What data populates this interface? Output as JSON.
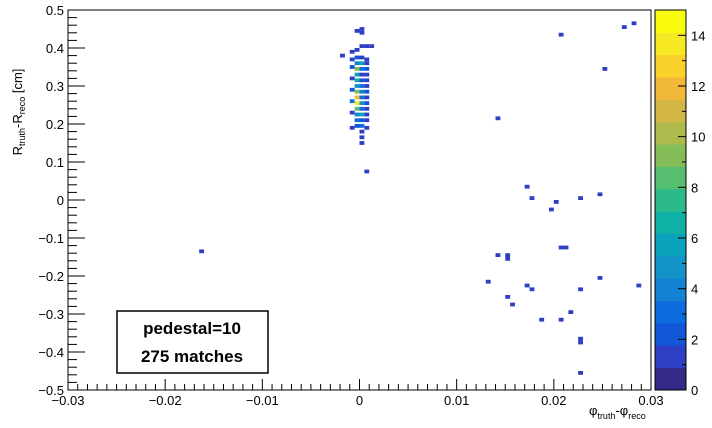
{
  "chart_data": {
    "type": "heatmap",
    "title": "",
    "xlabel": {
      "main": "φ",
      "sub1": "truth",
      "mid": "-φ",
      "sub2": "reco"
    },
    "ylabel": {
      "r1": "R",
      "sub1": "truth",
      "mid": "-R",
      "sub2": "reco",
      "unit": " [cm]"
    },
    "xlim": [
      -0.03,
      0.03
    ],
    "ylim": [
      -0.5,
      0.5
    ],
    "zlim": [
      0,
      15
    ],
    "x_ticks": [
      {
        "v": -0.03,
        "label": "−0.03"
      },
      {
        "v": -0.02,
        "label": "−0.02"
      },
      {
        "v": -0.01,
        "label": "−0.01"
      },
      {
        "v": 0,
        "label": "0"
      },
      {
        "v": 0.01,
        "label": "0.01"
      },
      {
        "v": 0.02,
        "label": "0.02"
      },
      {
        "v": 0.03,
        "label": "0.03"
      }
    ],
    "y_ticks": [
      {
        "v": -0.5,
        "label": "−0.5"
      },
      {
        "v": -0.4,
        "label": "−0.4"
      },
      {
        "v": -0.3,
        "label": "−0.3"
      },
      {
        "v": -0.2,
        "label": "−0.2"
      },
      {
        "v": -0.1,
        "label": "−0.1"
      },
      {
        "v": 0,
        "label": "0"
      },
      {
        "v": 0.1,
        "label": "0.1"
      },
      {
        "v": 0.2,
        "label": "0.2"
      },
      {
        "v": 0.3,
        "label": "0.3"
      },
      {
        "v": 0.4,
        "label": "0.4"
      },
      {
        "v": 0.5,
        "label": "0.5"
      }
    ],
    "z_ticks": [
      {
        "v": 0,
        "label": "0"
      },
      {
        "v": 2,
        "label": "2"
      },
      {
        "v": 4,
        "label": "4"
      },
      {
        "v": 6,
        "label": "6"
      },
      {
        "v": 8,
        "label": "8"
      },
      {
        "v": 10,
        "label": "10"
      },
      {
        "v": 12,
        "label": "12"
      },
      {
        "v": 14,
        "label": "14"
      }
    ],
    "colorbar_palette": [
      "#352a87",
      "#2f3fc4",
      "#1156d6",
      "#0d6ddf",
      "#1482d4",
      "#1493c8",
      "#0aa3bd",
      "#0fb0a6",
      "#2cba8b",
      "#56bf6f",
      "#84bd58",
      "#aebb4c",
      "#d2b744",
      "#f1b83a",
      "#fbd12c",
      "#f6e822",
      "#f9fb0e"
    ],
    "bins": [
      {
        "x": 0.00025,
        "y": 0.45,
        "z": 1
      },
      {
        "x": -0.00025,
        "y": 0.445,
        "z": 1
      },
      {
        "x": 0.00025,
        "y": 0.44,
        "z": 1
      },
      {
        "x": 0.00025,
        "y": 0.405,
        "z": 1
      },
      {
        "x": 0.00075,
        "y": 0.405,
        "z": 1
      },
      {
        "x": 0.00125,
        "y": 0.405,
        "z": 1
      },
      {
        "x": -0.00025,
        "y": 0.395,
        "z": 1
      },
      {
        "x": -0.00075,
        "y": 0.39,
        "z": 1
      },
      {
        "x": -0.00175,
        "y": 0.38,
        "z": 1
      },
      {
        "x": -0.00075,
        "y": 0.37,
        "z": 1
      },
      {
        "x": -0.00025,
        "y": 0.375,
        "z": 2
      },
      {
        "x": 0.00025,
        "y": 0.375,
        "z": 1
      },
      {
        "x": 0.00075,
        "y": 0.37,
        "z": 1
      },
      {
        "x": -0.00025,
        "y": 0.36,
        "z": 4
      },
      {
        "x": 0.00025,
        "y": 0.36,
        "z": 6
      },
      {
        "x": 0.00075,
        "y": 0.36,
        "z": 1
      },
      {
        "x": -0.00075,
        "y": 0.35,
        "z": 2
      },
      {
        "x": -0.00025,
        "y": 0.345,
        "z": 9
      },
      {
        "x": 0.00025,
        "y": 0.345,
        "z": 3
      },
      {
        "x": 0.00075,
        "y": 0.345,
        "z": 2
      },
      {
        "x": -0.00025,
        "y": 0.33,
        "z": 6
      },
      {
        "x": 0.00025,
        "y": 0.33,
        "z": 1
      },
      {
        "x": 0.00075,
        "y": 0.33,
        "z": 1
      },
      {
        "x": -0.00075,
        "y": 0.32,
        "z": 1
      },
      {
        "x": -0.00025,
        "y": 0.315,
        "z": 7
      },
      {
        "x": 0.00025,
        "y": 0.315,
        "z": 2
      },
      {
        "x": 0.00075,
        "y": 0.315,
        "z": 1
      },
      {
        "x": -0.00025,
        "y": 0.3,
        "z": 5
      },
      {
        "x": 0.00025,
        "y": 0.3,
        "z": 3
      },
      {
        "x": 0.00075,
        "y": 0.3,
        "z": 1
      },
      {
        "x": -0.00075,
        "y": 0.29,
        "z": 2
      },
      {
        "x": -0.00025,
        "y": 0.285,
        "z": 9
      },
      {
        "x": 0.00025,
        "y": 0.285,
        "z": 4
      },
      {
        "x": 0.00075,
        "y": 0.285,
        "z": 2
      },
      {
        "x": -0.00025,
        "y": 0.27,
        "z": 12
      },
      {
        "x": 0.00025,
        "y": 0.27,
        "z": 3
      },
      {
        "x": 0.00075,
        "y": 0.27,
        "z": 1
      },
      {
        "x": -0.00075,
        "y": 0.26,
        "z": 3
      },
      {
        "x": -0.00025,
        "y": 0.255,
        "z": 14
      },
      {
        "x": 0.00025,
        "y": 0.255,
        "z": 5
      },
      {
        "x": 0.00075,
        "y": 0.255,
        "z": 2
      },
      {
        "x": -0.00025,
        "y": 0.24,
        "z": 8
      },
      {
        "x": 0.00025,
        "y": 0.24,
        "z": 3
      },
      {
        "x": 0.00075,
        "y": 0.24,
        "z": 1
      },
      {
        "x": -0.00075,
        "y": 0.23,
        "z": 1
      },
      {
        "x": -0.00025,
        "y": 0.225,
        "z": 4
      },
      {
        "x": 0.00025,
        "y": 0.225,
        "z": 6
      },
      {
        "x": 0.00075,
        "y": 0.225,
        "z": 1
      },
      {
        "x": -0.00025,
        "y": 0.21,
        "z": 3
      },
      {
        "x": 0.00025,
        "y": 0.21,
        "z": 2
      },
      {
        "x": 0.00075,
        "y": 0.21,
        "z": 1
      },
      {
        "x": -0.00025,
        "y": 0.195,
        "z": 2
      },
      {
        "x": 0.00025,
        "y": 0.195,
        "z": 3
      },
      {
        "x": -0.00075,
        "y": 0.19,
        "z": 1
      },
      {
        "x": 0.00075,
        "y": 0.19,
        "z": 1
      },
      {
        "x": 0.00025,
        "y": 0.18,
        "z": 1
      },
      {
        "x": 0.00025,
        "y": 0.165,
        "z": 1
      },
      {
        "x": 0.00025,
        "y": 0.15,
        "z": 1
      },
      {
        "x": 0.00075,
        "y": 0.075,
        "z": 1
      },
      {
        "x": -0.01625,
        "y": -0.135,
        "z": 1
      },
      {
        "x": 0.01425,
        "y": 0.215,
        "z": 1
      },
      {
        "x": 0.02075,
        "y": 0.435,
        "z": 1
      },
      {
        "x": 0.02525,
        "y": 0.345,
        "z": 1
      },
      {
        "x": 0.02725,
        "y": 0.455,
        "z": 1
      },
      {
        "x": 0.02825,
        "y": 0.465,
        "z": 1
      },
      {
        "x": 0.01725,
        "y": 0.035,
        "z": 1
      },
      {
        "x": 0.01775,
        "y": 0.005,
        "z": 1
      },
      {
        "x": 0.01975,
        "y": -0.025,
        "z": 1
      },
      {
        "x": 0.02025,
        "y": -0.005,
        "z": 1
      },
      {
        "x": 0.02275,
        "y": 0.005,
        "z": 1
      },
      {
        "x": 0.02475,
        "y": 0.015,
        "z": 1
      },
      {
        "x": 0.02075,
        "y": -0.125,
        "z": 1
      },
      {
        "x": 0.02125,
        "y": -0.125,
        "z": 1
      },
      {
        "x": 0.01425,
        "y": -0.145,
        "z": 1
      },
      {
        "x": 0.01525,
        "y": -0.145,
        "z": 1
      },
      {
        "x": 0.01525,
        "y": -0.155,
        "z": 1
      },
      {
        "x": 0.02475,
        "y": -0.205,
        "z": 1
      },
      {
        "x": 0.01325,
        "y": -0.215,
        "z": 1
      },
      {
        "x": 0.01725,
        "y": -0.225,
        "z": 1
      },
      {
        "x": 0.01775,
        "y": -0.235,
        "z": 1
      },
      {
        "x": 0.02275,
        "y": -0.235,
        "z": 1
      },
      {
        "x": 0.02875,
        "y": -0.225,
        "z": 1
      },
      {
        "x": 0.01525,
        "y": -0.255,
        "z": 1
      },
      {
        "x": 0.01575,
        "y": -0.275,
        "z": 1
      },
      {
        "x": 0.02175,
        "y": -0.295,
        "z": 1
      },
      {
        "x": 0.01875,
        "y": -0.315,
        "z": 1
      },
      {
        "x": 0.02075,
        "y": -0.315,
        "z": 1
      },
      {
        "x": 0.02275,
        "y": -0.365,
        "z": 1
      },
      {
        "x": 0.02275,
        "y": -0.375,
        "z": 1
      },
      {
        "x": 0.02275,
        "y": -0.455,
        "z": 1
      }
    ],
    "annotation": {
      "line1": "pedestal=10",
      "line2": "275 matches"
    }
  }
}
